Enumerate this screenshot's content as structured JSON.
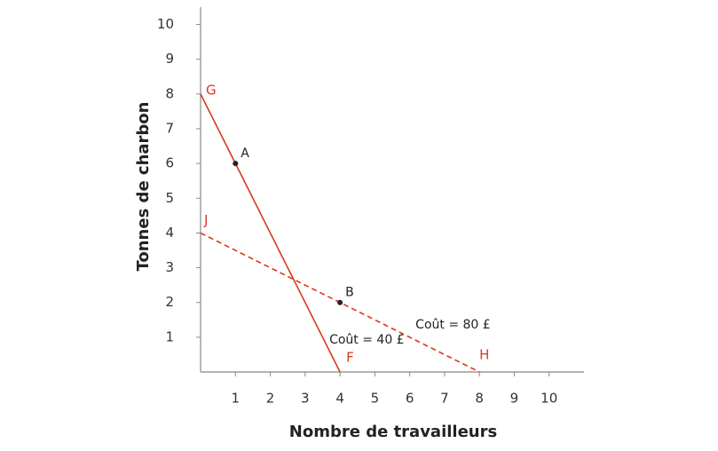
{
  "chart_data": {
    "type": "line",
    "x_label": "Nombre de travailleurs",
    "y_label": "Tonnes de charbon",
    "xlim": [
      0,
      11
    ],
    "ylim": [
      0,
      10.5
    ],
    "xticks": [
      1,
      2,
      3,
      4,
      5,
      6,
      7,
      8,
      9,
      10
    ],
    "yticks": [
      1,
      2,
      3,
      4,
      5,
      6,
      7,
      8,
      9,
      10
    ],
    "series": [
      {
        "name": "Coût = 40 £",
        "color": "#d9381e",
        "dashed": false,
        "x": [
          0,
          4
        ],
        "values": [
          8,
          0
        ],
        "point_labels": [
          "G",
          "F"
        ]
      },
      {
        "name": "Coût = 80 £",
        "color": "#d9381e",
        "dashed": true,
        "x": [
          0,
          8
        ],
        "values": [
          4,
          0
        ],
        "point_labels": [
          "J",
          "H"
        ]
      }
    ],
    "points": [
      {
        "label": "A",
        "x": 1,
        "y": 6
      },
      {
        "label": "B",
        "x": 4,
        "y": 2
      }
    ]
  }
}
